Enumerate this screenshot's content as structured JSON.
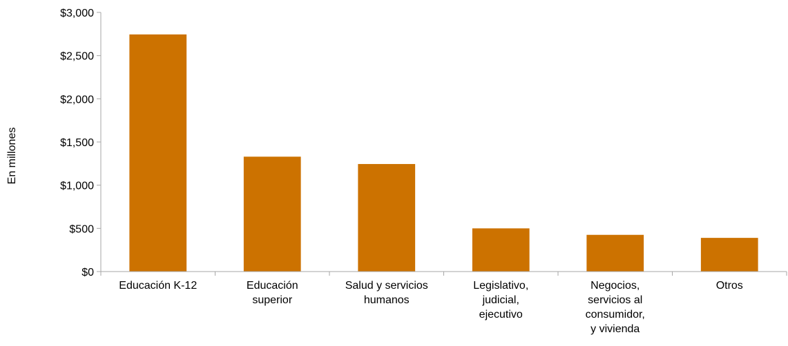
{
  "chart_data": {
    "type": "bar",
    "title": "",
    "xlabel": "",
    "ylabel": "En millones",
    "categories": [
      [
        "Educación K-12"
      ],
      [
        "Educación",
        "superior"
      ],
      [
        "Salud y servicios",
        "humanos"
      ],
      [
        "Legislativo,",
        "judicial,",
        "ejecutivo"
      ],
      [
        "Negocios,",
        "servicios al",
        "consumidor,",
        "y vivienda"
      ],
      [
        "Otros"
      ]
    ],
    "values": [
      2745,
      1330,
      1245,
      500,
      425,
      390
    ],
    "ylim": [
      0,
      3000
    ],
    "yticks": [
      0,
      500,
      1000,
      1500,
      2000,
      2500,
      3000
    ],
    "ytick_labels": [
      "$0",
      "$500",
      "$1,000",
      "$1,500",
      "$2,000",
      "$2,500",
      "$3,000"
    ],
    "grid": false,
    "legend": "none",
    "colors": {
      "bar": "#CC7200",
      "axis": "#A6A6A6"
    }
  }
}
